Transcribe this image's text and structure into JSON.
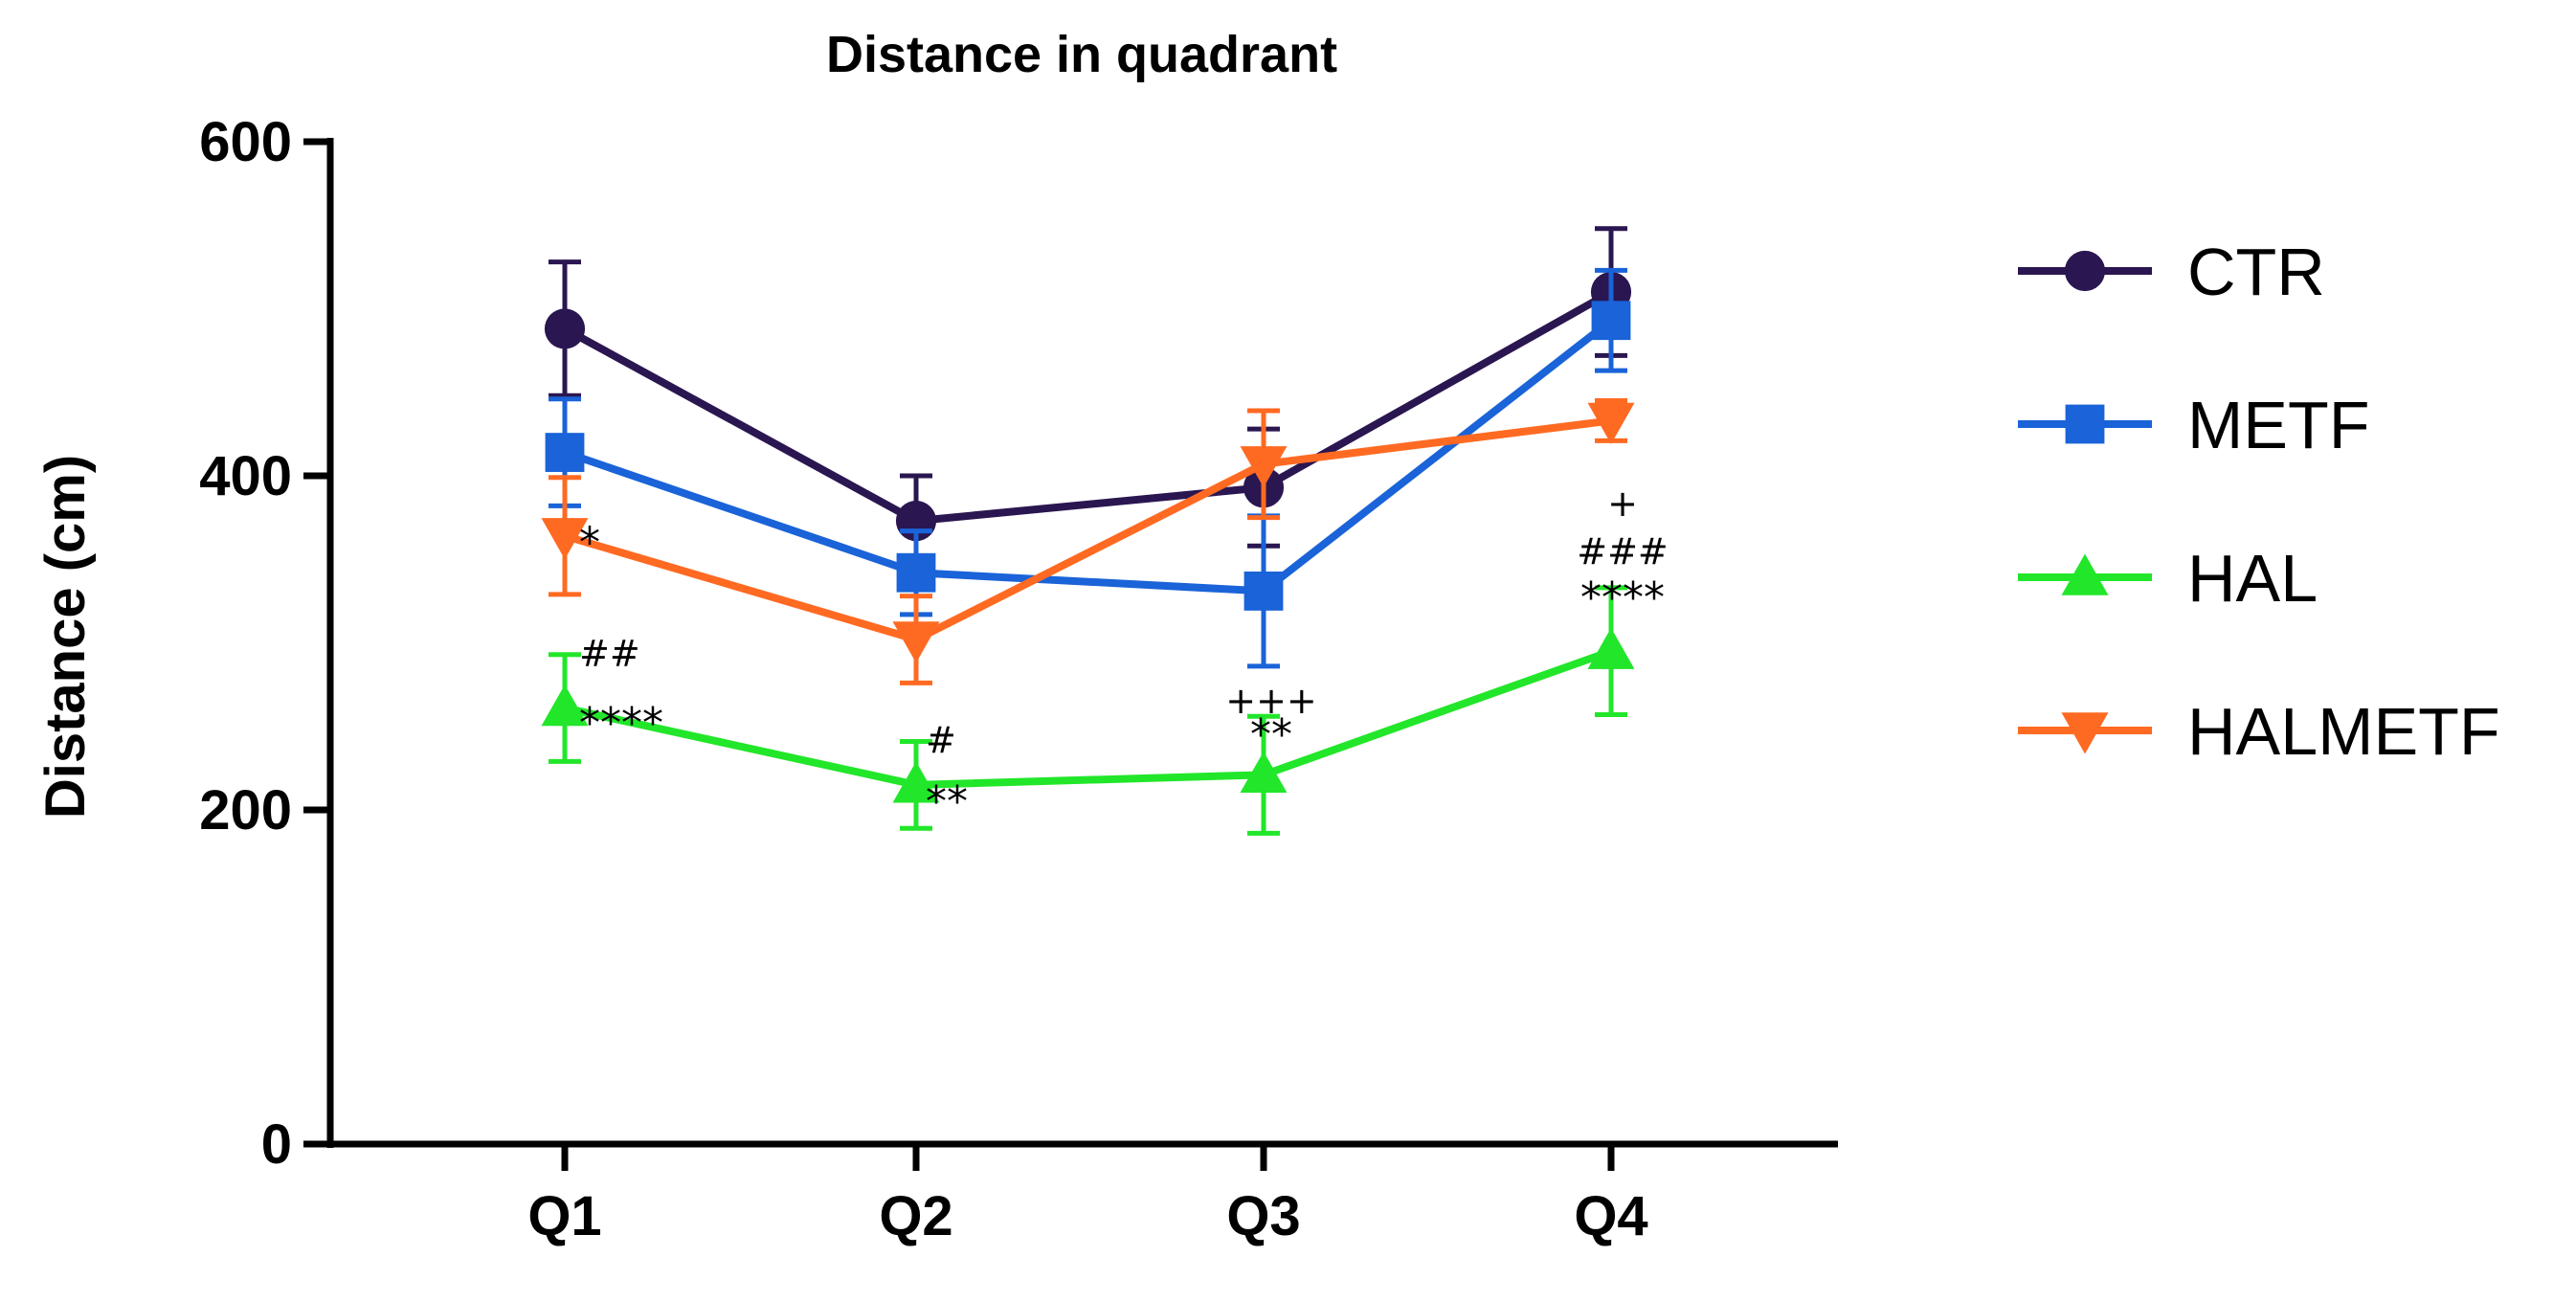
{
  "chart_data": {
    "type": "line",
    "title": "Distance in quadrant",
    "xlabel": "",
    "ylabel": "Distance (cm)",
    "ylim": [
      0,
      600
    ],
    "yticks": [
      "0",
      "200",
      "400",
      "600"
    ],
    "categories": [
      "Q1",
      "Q2",
      "Q3",
      "Q4"
    ],
    "grid": false,
    "legend_position": "right",
    "series": [
      {
        "name": "CTR",
        "color": "#2a1650",
        "marker": "circle",
        "values": [
          488,
          373,
          393,
          510
        ],
        "errors": [
          40,
          27,
          35,
          38
        ]
      },
      {
        "name": "METF",
        "color": "#1a63d8",
        "marker": "square",
        "values": [
          414,
          342,
          331,
          493
        ],
        "errors": [
          32,
          25,
          45,
          30
        ]
      },
      {
        "name": "HAL",
        "color": "#22e62a",
        "marker": "triangle-up",
        "values": [
          261,
          215,
          221,
          295
        ],
        "errors": [
          32,
          26,
          35,
          38
        ]
      },
      {
        "name": "HALMETF",
        "color": "#ff6a22",
        "marker": "triangle-down",
        "values": [
          364,
          302,
          407,
          433
        ],
        "errors": [
          35,
          26,
          32,
          12
        ]
      }
    ],
    "annotations": [
      {
        "category": "Q1",
        "value": 370,
        "text": "*"
      },
      {
        "category": "Q1",
        "value": 294,
        "text": "##"
      },
      {
        "category": "Q1",
        "value": 262,
        "text": "****"
      },
      {
        "category": "Q2",
        "value": 242,
        "text": "#"
      },
      {
        "category": "Q2",
        "value": 215,
        "text": "**"
      },
      {
        "category": "Q3",
        "value": 266,
        "text": "+++"
      },
      {
        "category": "Q3",
        "value": 255,
        "text": "**"
      },
      {
        "category": "Q4",
        "value": 384,
        "text": "+"
      },
      {
        "category": "Q4",
        "value": 355,
        "text": "###"
      },
      {
        "category": "Q4",
        "value": 337,
        "text": "****"
      }
    ]
  }
}
